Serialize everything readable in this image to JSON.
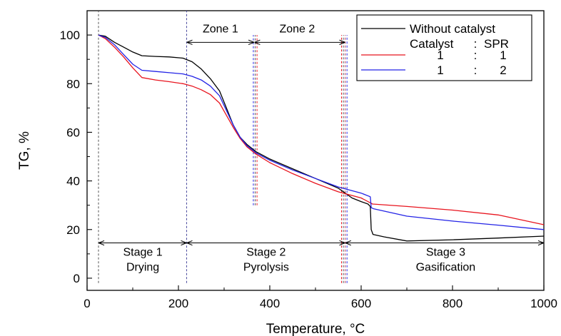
{
  "chart_data": {
    "type": "line",
    "xlabel": "Temperature, °C",
    "ylabel": "TG, %",
    "xlim": [
      0,
      1000
    ],
    "ylim": [
      -5,
      110
    ],
    "x_ticks": [
      0,
      200,
      400,
      600,
      800,
      1000
    ],
    "y_ticks": [
      0,
      20,
      40,
      60,
      80,
      100
    ],
    "grid": false,
    "legend": {
      "placement": "top-right",
      "header": [
        "Catalyst",
        ":",
        "SPR"
      ],
      "entries": [
        {
          "label": "Without catalyst"
        },
        {
          "label": [
            "1",
            ":",
            "1"
          ]
        },
        {
          "label": [
            "1",
            ":",
            "2"
          ]
        }
      ]
    },
    "series": [
      {
        "name": "Without catalyst",
        "color": "#000000",
        "points": [
          [
            25,
            100
          ],
          [
            40,
            99.5
          ],
          [
            60,
            97
          ],
          [
            80,
            95
          ],
          [
            100,
            93
          ],
          [
            120,
            91.5
          ],
          [
            150,
            91.2
          ],
          [
            180,
            91
          ],
          [
            210,
            90.5
          ],
          [
            230,
            89
          ],
          [
            250,
            86
          ],
          [
            270,
            82
          ],
          [
            290,
            77
          ],
          [
            305,
            70
          ],
          [
            320,
            63
          ],
          [
            335,
            58
          ],
          [
            350,
            55
          ],
          [
            370,
            52
          ],
          [
            400,
            49
          ],
          [
            450,
            45
          ],
          [
            500,
            41
          ],
          [
            550,
            37
          ],
          [
            580,
            33
          ],
          [
            600,
            31.5
          ],
          [
            615,
            30.5
          ],
          [
            620,
            29.5
          ],
          [
            622,
            20
          ],
          [
            626,
            18
          ],
          [
            650,
            17
          ],
          [
            700,
            15.3
          ],
          [
            800,
            15.8
          ],
          [
            900,
            16.5
          ],
          [
            1000,
            17.3
          ]
        ]
      },
      {
        "name": "Catalyst : SPR 1 : 1",
        "color": "#e8141e",
        "points": [
          [
            25,
            100
          ],
          [
            40,
            98.5
          ],
          [
            60,
            95
          ],
          [
            80,
            91
          ],
          [
            100,
            86.5
          ],
          [
            120,
            82.5
          ],
          [
            150,
            81.5
          ],
          [
            180,
            80.8
          ],
          [
            210,
            80
          ],
          [
            230,
            79
          ],
          [
            250,
            77.5
          ],
          [
            270,
            75.5
          ],
          [
            290,
            72
          ],
          [
            305,
            67
          ],
          [
            320,
            62
          ],
          [
            335,
            57.5
          ],
          [
            350,
            54
          ],
          [
            370,
            51
          ],
          [
            400,
            47.5
          ],
          [
            450,
            43
          ],
          [
            500,
            39
          ],
          [
            550,
            35.5
          ],
          [
            600,
            33
          ],
          [
            620,
            31
          ],
          [
            625,
            30.5
          ],
          [
            700,
            29.5
          ],
          [
            800,
            28
          ],
          [
            900,
            26
          ],
          [
            1000,
            22
          ]
        ]
      },
      {
        "name": "Catalyst : SPR 1 : 2",
        "color": "#2323e6",
        "points": [
          [
            25,
            100
          ],
          [
            40,
            99
          ],
          [
            60,
            96
          ],
          [
            80,
            92
          ],
          [
            100,
            88
          ],
          [
            120,
            85.5
          ],
          [
            150,
            85
          ],
          [
            180,
            84.5
          ],
          [
            210,
            84
          ],
          [
            230,
            83
          ],
          [
            250,
            81.5
          ],
          [
            270,
            79
          ],
          [
            290,
            75
          ],
          [
            305,
            69
          ],
          [
            320,
            63
          ],
          [
            335,
            58
          ],
          [
            350,
            54.5
          ],
          [
            370,
            51.5
          ],
          [
            400,
            48.5
          ],
          [
            450,
            44.5
          ],
          [
            500,
            41
          ],
          [
            550,
            37.5
          ],
          [
            600,
            35
          ],
          [
            620,
            33.5
          ],
          [
            622,
            29
          ],
          [
            628,
            28.5
          ],
          [
            700,
            25.5
          ],
          [
            800,
            23.5
          ],
          [
            900,
            21.8
          ],
          [
            1000,
            20
          ]
        ]
      }
    ],
    "vlines": [
      {
        "x": 25,
        "color": "#555555",
        "y_from": -2,
        "y_to": 110
      },
      {
        "x": 218,
        "color": "#4b4b9e",
        "y_from": -2,
        "y_to": 110
      },
      {
        "x": 364,
        "color": "#2323e6",
        "y_from": 30,
        "y_to": 100
      },
      {
        "x": 368,
        "color": "#555555",
        "y_from": 30,
        "y_to": 100
      },
      {
        "x": 372,
        "color": "#e8141e",
        "y_from": 30,
        "y_to": 100
      },
      {
        "x": 557,
        "color": "#e8141e",
        "y_from": -2,
        "y_to": 100
      },
      {
        "x": 561,
        "color": "#555555",
        "y_from": -2,
        "y_to": 100
      },
      {
        "x": 565,
        "color": "#b04060",
        "y_from": -2,
        "y_to": 100
      },
      {
        "x": 569,
        "color": "#2323e6",
        "y_from": -2,
        "y_to": 100
      }
    ],
    "annotations": {
      "zone1": {
        "label": "Zone 1",
        "x_from": 218,
        "x_to": 366,
        "y": 97,
        "label_x": 292,
        "label_y": 101
      },
      "zone2": {
        "label": "Zone 2",
        "x_from": 366,
        "x_to": 565,
        "y": 97,
        "label_x": 460,
        "label_y": 101
      },
      "stage_arrow_y": 14.5,
      "stages": [
        {
          "line1": "Stage 1",
          "line2": "Drying",
          "x_from": 25,
          "x_to": 218,
          "label_x": 122
        },
        {
          "line1": "Stage 2",
          "line2": "Pyrolysis",
          "x_from": 218,
          "x_to": 565,
          "label_x": 392
        },
        {
          "line1": "Stage 3",
          "line2": "Gasification",
          "x_from": 565,
          "x_to": 1000,
          "label_x": 785
        }
      ],
      "stage_line1_y": 9.3,
      "stage_line2_y": 3
    }
  }
}
